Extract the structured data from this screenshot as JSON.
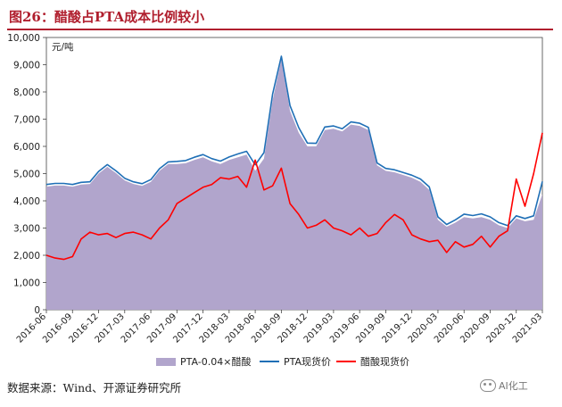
{
  "title": "图26：醋酸占PTA成本比例较小",
  "source": "数据来源：Wind、开源证券研究所",
  "watermark": "AI化工",
  "colors": {
    "area": "#b1a5cc",
    "pta": "#1f6fb6",
    "acetic": "#ff0000",
    "title": "#b01f2e"
  },
  "chart_data": {
    "type": "area",
    "unit_label": "元/吨",
    "ylim": [
      0,
      10000
    ],
    "yticks": [
      "0",
      "1,000",
      "2,000",
      "3,000",
      "4,000",
      "5,000",
      "6,000",
      "7,000",
      "8,000",
      "9,000",
      "10,000"
    ],
    "xticks": [
      "2016-06",
      "2016-09",
      "2016-12",
      "2017-03",
      "2017-06",
      "2017-09",
      "2017-12",
      "2018-03",
      "2018-06",
      "2018-09",
      "2018-12",
      "2019-03",
      "2019-06",
      "2019-09",
      "2019-12",
      "2020-03",
      "2020-06",
      "2020-09",
      "2020-12",
      "2021-03"
    ],
    "x": [
      "2016-06",
      "2016-07",
      "2016-08",
      "2016-09",
      "2016-10",
      "2016-11",
      "2016-12",
      "2017-01",
      "2017-02",
      "2017-03",
      "2017-04",
      "2017-05",
      "2017-06",
      "2017-07",
      "2017-08",
      "2017-09",
      "2017-10",
      "2017-11",
      "2017-12",
      "2018-01",
      "2018-02",
      "2018-03",
      "2018-04",
      "2018-05",
      "2018-06",
      "2018-07",
      "2018-08",
      "2018-09",
      "2018-10",
      "2018-11",
      "2018-12",
      "2019-01",
      "2019-02",
      "2019-03",
      "2019-04",
      "2019-05",
      "2019-06",
      "2019-07",
      "2019-08",
      "2019-09",
      "2019-10",
      "2019-11",
      "2019-12",
      "2020-01",
      "2020-02",
      "2020-03",
      "2020-04",
      "2020-05",
      "2020-06",
      "2020-07",
      "2020-08",
      "2020-09",
      "2020-10",
      "2020-11",
      "2020-12",
      "2021-01",
      "2021-02",
      "2021-03"
    ],
    "series": [
      {
        "name": "PTA-0.04×醋酸",
        "type": "area",
        "values": [
          4520,
          4560,
          4560,
          4520,
          4600,
          4620,
          5000,
          5250,
          5020,
          4750,
          4620,
          4550,
          4700,
          5100,
          5350,
          5350,
          5380,
          5500,
          5600,
          5450,
          5350,
          5500,
          5600,
          5700,
          5100,
          5550,
          7700,
          9200,
          7300,
          6500,
          6000,
          6000,
          6600,
          6650,
          6550,
          6800,
          6750,
          6600,
          5300,
          5100,
          5050,
          4950,
          4850,
          4700,
          4400,
          3300,
          3050,
          3200,
          3400,
          3350,
          3400,
          3300,
          3100,
          3000,
          3350,
          3250,
          3300,
          4250
        ]
      },
      {
        "name": "PTA现货价",
        "type": "line",
        "values": [
          4600,
          4640,
          4640,
          4600,
          4680,
          4700,
          5080,
          5330,
          5100,
          4830,
          4700,
          4630,
          4780,
          5180,
          5430,
          5450,
          5480,
          5600,
          5700,
          5550,
          5460,
          5610,
          5720,
          5820,
          5320,
          5770,
          7920,
          9310,
          7500,
          6690,
          6120,
          6110,
          6710,
          6750,
          6650,
          6900,
          6850,
          6700,
          5390,
          5190,
          5140,
          5040,
          4940,
          4800,
          4510,
          3410,
          3130,
          3300,
          3510,
          3460,
          3520,
          3410,
          3200,
          3090,
          3450,
          3350,
          3450,
          4710
        ]
      },
      {
        "name": "醋酸现货价",
        "type": "line",
        "values": [
          2000,
          1900,
          1850,
          1950,
          2600,
          2850,
          2750,
          2800,
          2650,
          2800,
          2850,
          2750,
          2600,
          3000,
          3300,
          3900,
          4100,
          4300,
          4500,
          4600,
          4850,
          4800,
          4900,
          4500,
          5500,
          4400,
          4550,
          5200,
          3900,
          3500,
          3000,
          3100,
          3300,
          3000,
          2900,
          2750,
          3000,
          2700,
          2800,
          3200,
          3500,
          3300,
          2750,
          2600,
          2500,
          2550,
          2100,
          2500,
          2300,
          2400,
          2700,
          2300,
          2700,
          2900,
          4800,
          3800,
          5000,
          6500
        ]
      }
    ]
  }
}
